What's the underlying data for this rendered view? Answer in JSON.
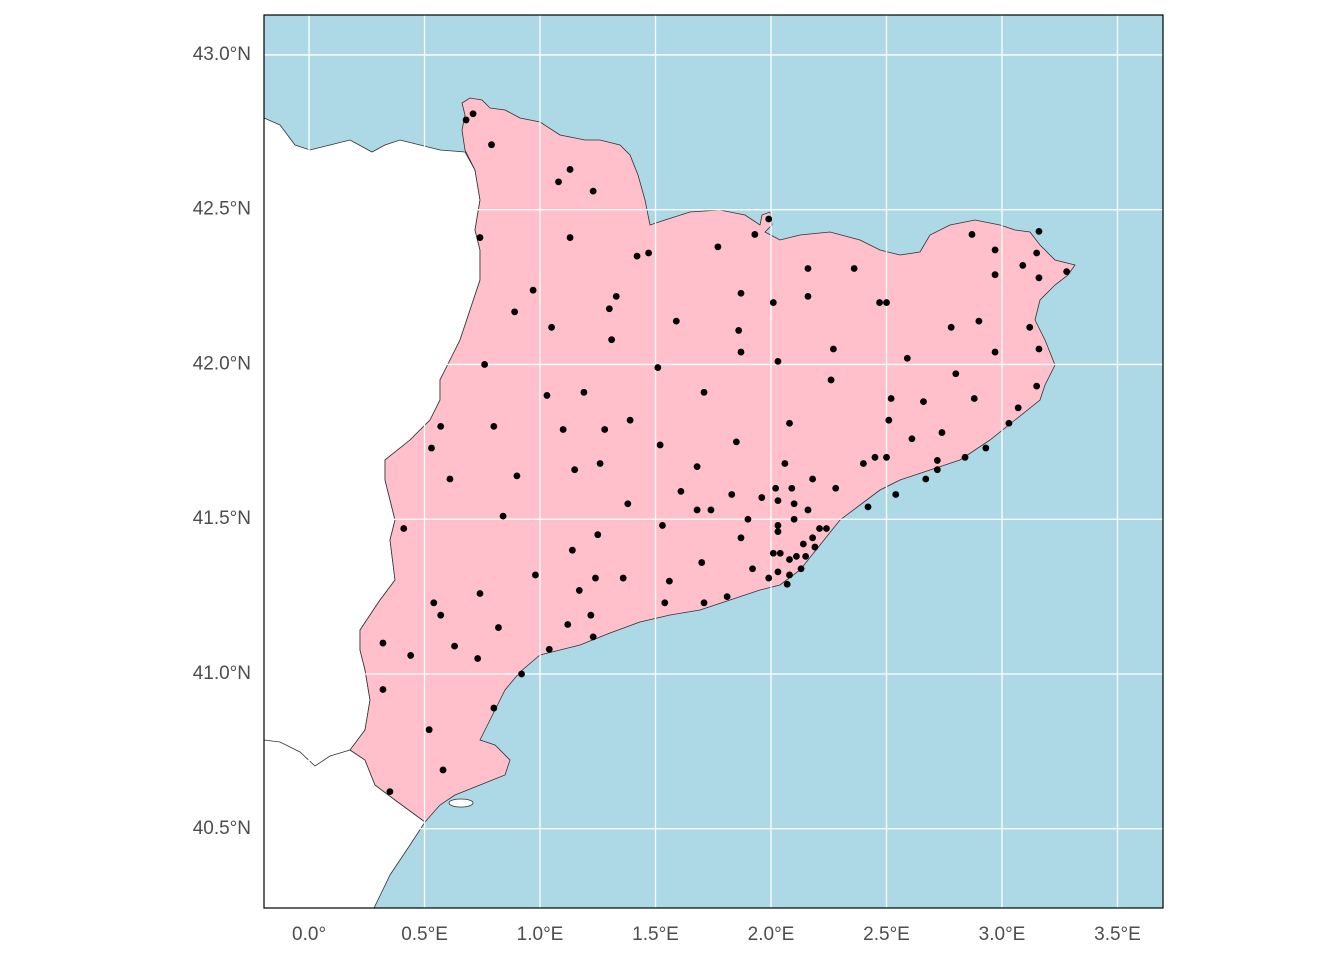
{
  "chart_data": {
    "type": "scatter",
    "xlim": [
      -0.195,
      3.697
    ],
    "ylim": [
      40.244,
      43.129
    ],
    "xticks": [
      {
        "value": 0,
        "label": "0.0°"
      },
      {
        "value": 0.5,
        "label": "0.5°E"
      },
      {
        "value": 1,
        "label": "1.0°E"
      },
      {
        "value": 1.5,
        "label": "1.5°E"
      },
      {
        "value": 2,
        "label": "2.0°E"
      },
      {
        "value": 2.5,
        "label": "2.5°E"
      },
      {
        "value": 3,
        "label": "3.0°E"
      },
      {
        "value": 3.5,
        "label": "3.5°E"
      }
    ],
    "yticks": [
      {
        "value": 40.5,
        "label": "40.5°N"
      },
      {
        "value": 41,
        "label": "41.0°N"
      },
      {
        "value": 41.5,
        "label": "41.5°N"
      },
      {
        "value": 42,
        "label": "42.0°N"
      },
      {
        "value": 42.5,
        "label": "42.5°N"
      },
      {
        "value": 43,
        "label": "43.0°N"
      }
    ],
    "grid": true,
    "color": "#000000",
    "x": [
      0.71,
      0.68,
      0.79,
      1.13,
      1.08,
      1.23,
      0.74,
      1.13,
      1.47,
      1.42,
      1.77,
      1.93,
      1.99,
      2.16,
      2.36,
      3.16,
      3.15,
      3.09,
      3.16,
      3.28,
      2.97,
      2.87,
      2.97,
      0.97,
      1.33,
      1.3,
      0.89,
      1.05,
      1.59,
      1.87,
      2.01,
      2.16,
      1.86,
      1.87,
      2.03,
      2.27,
      2.47,
      2.5,
      2.78,
      2.9,
      3.12,
      3.16,
      2.97,
      2.59,
      1.31,
      0.76,
      1.51,
      2.26,
      2.8,
      1.03,
      1.19,
      1.71,
      2.52,
      2.88,
      2.66,
      3.15,
      3.07,
      3.03,
      0.57,
      0.8,
      1.1,
      1.28,
      1.39,
      0.53,
      1.85,
      2.08,
      2.51,
      2.74,
      2.61,
      2.93,
      2.84,
      0.61,
      0.9,
      1.15,
      1.26,
      1.52,
      1.68,
      2.06,
      2.72,
      2.45,
      2.5,
      2.4,
      2.72,
      2.67,
      2.54,
      2.42,
      0.41,
      0.84,
      1.38,
      1.53,
      1.61,
      1.68,
      1.74,
      1.83,
      1.96,
      2.02,
      2.09,
      2.18,
      2.28,
      2.03,
      2.1,
      2.16,
      2.21,
      2.18,
      2.1,
      2.03,
      1.87,
      1.9,
      2.24,
      1.25,
      1.14,
      2.01,
      2.04,
      2.08,
      2.11,
      2.14,
      2.19,
      2.08,
      1.99,
      2.03,
      1.92,
      1.7,
      0.98,
      1.24,
      1.36,
      1.56,
      0.54,
      0.74,
      1.17,
      0.57,
      1.54,
      1.71,
      1.81,
      0.82,
      1.12,
      1.22,
      0.32,
      0.63,
      1.23,
      1.04,
      0.44,
      0.73,
      0.92,
      0.32,
      0.8,
      0.52,
      0.58,
      0.35,
      2.13,
      2.07,
      2.15,
      2.03
    ],
    "y": [
      42.81,
      42.79,
      42.71,
      42.63,
      42.59,
      42.56,
      42.41,
      42.41,
      42.36,
      42.35,
      42.38,
      42.42,
      42.47,
      42.31,
      42.31,
      42.43,
      42.36,
      42.32,
      42.28,
      42.3,
      42.29,
      42.42,
      42.37,
      42.24,
      42.22,
      42.18,
      42.17,
      42.12,
      42.14,
      42.23,
      42.2,
      42.22,
      42.11,
      42.04,
      42.01,
      42.05,
      42.2,
      42.2,
      42.12,
      42.14,
      42.12,
      42.05,
      42.04,
      42.02,
      42.08,
      42.0,
      41.99,
      41.95,
      41.97,
      41.9,
      41.91,
      41.91,
      41.89,
      41.89,
      41.88,
      41.93,
      41.86,
      41.81,
      41.8,
      41.8,
      41.79,
      41.79,
      41.82,
      41.73,
      41.75,
      41.81,
      41.82,
      41.78,
      41.76,
      41.73,
      41.7,
      41.63,
      41.64,
      41.66,
      41.68,
      41.74,
      41.67,
      41.68,
      41.69,
      41.7,
      41.7,
      41.68,
      41.66,
      41.63,
      41.58,
      41.54,
      41.47,
      41.51,
      41.55,
      41.48,
      41.59,
      41.53,
      41.53,
      41.58,
      41.57,
      41.6,
      41.6,
      41.63,
      41.6,
      41.56,
      41.55,
      41.53,
      41.47,
      41.44,
      41.5,
      41.48,
      41.44,
      41.5,
      41.47,
      41.45,
      41.4,
      41.39,
      41.39,
      41.37,
      41.38,
      41.42,
      41.41,
      41.32,
      41.31,
      41.33,
      41.34,
      41.36,
      41.32,
      41.31,
      41.31,
      41.3,
      41.23,
      41.26,
      41.27,
      41.19,
      41.23,
      41.23,
      41.25,
      41.15,
      41.16,
      41.19,
      41.1,
      41.09,
      41.12,
      41.08,
      41.06,
      41.05,
      41.0,
      40.95,
      40.89,
      40.82,
      40.69,
      40.62,
      41.34,
      41.29,
      41.38,
      41.46
    ]
  }
}
